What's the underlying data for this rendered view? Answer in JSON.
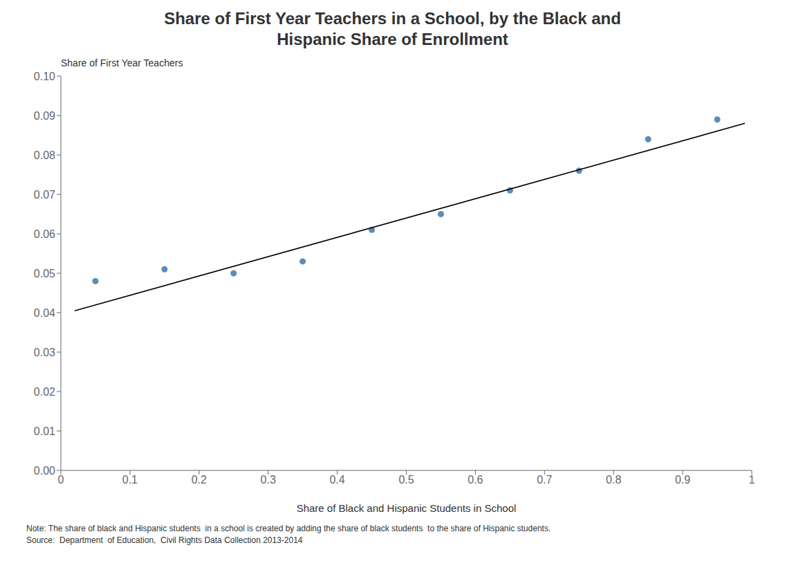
{
  "chart_data": {
    "type": "scatter",
    "title": "Share of First Year Teachers in a School, by the Black and\nHispanic Share of Enrollment",
    "xlabel": "Share of Black and Hispanic Students in School",
    "ylabel": "Share of First Year Teachers",
    "annotations": [
      "Note: The share of black and Hispanic students  in a school is created by adding the share of black students  to the share of Hispanic students.",
      "Source:  Department  of Education,  Civil Rights Data Collection 2013-2014"
    ],
    "series": [
      {
        "type": "scatter",
        "color": "#5B8DB8",
        "x": [
          0.05,
          0.15,
          0.25,
          0.35,
          0.45,
          0.55,
          0.65,
          0.75,
          0.85,
          0.95
        ],
        "values": [
          0.048,
          0.051,
          0.05,
          0.053,
          0.061,
          0.065,
          0.071,
          0.076,
          0.084,
          0.089
        ]
      },
      {
        "type": "line",
        "color": "#000000",
        "x": [
          0.02,
          0.99
        ],
        "values": [
          0.04048,
          0.08801
        ]
      }
    ],
    "xlim": [
      0,
      1
    ],
    "ylim": [
      0,
      0.1
    ],
    "xticks": [
      0,
      0.1,
      0.2,
      0.3,
      0.4,
      0.5,
      0.6,
      0.7,
      0.8,
      0.9,
      1
    ],
    "yticks": [
      {
        "value": 0,
        "label": "0.00"
      },
      {
        "value": 0.01,
        "label": "0.01"
      },
      {
        "value": 0.02,
        "label": "0.02"
      },
      {
        "value": 0.03,
        "label": "0.03"
      },
      {
        "value": 0.04,
        "label": "0.04"
      },
      {
        "value": 0.05,
        "label": "0.05"
      },
      {
        "value": 0.06,
        "label": "0.06"
      },
      {
        "value": 0.07,
        "label": "0.07"
      },
      {
        "value": 0.08,
        "label": "0.08"
      },
      {
        "value": 0.09,
        "label": "0.09"
      },
      {
        "value": 0.1,
        "label": "0.10"
      }
    ],
    "grid": false
  }
}
